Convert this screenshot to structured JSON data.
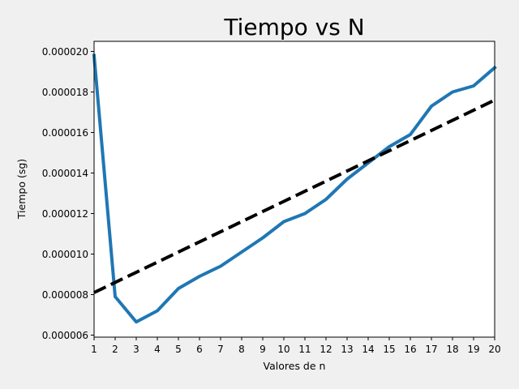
{
  "chart_data": {
    "type": "line",
    "title": "Tiempo vs N",
    "xlabel": "Valores de n",
    "ylabel": "Tiempo (sg)",
    "xlim": [
      1,
      20
    ],
    "ylim": [
      5.9e-06,
      2.05e-05
    ],
    "xticks": [
      "1",
      "2",
      "3",
      "4",
      "5",
      "6",
      "7",
      "8",
      "9",
      "10",
      "11",
      "12",
      "13",
      "14",
      "15",
      "16",
      "17",
      "18",
      "19",
      "20"
    ],
    "yticks": [
      "0.000006",
      "0.000008",
      "0.000010",
      "0.000012",
      "0.000014",
      "0.000016",
      "0.000018",
      "0.000020"
    ],
    "grid": false,
    "series": [
      {
        "style": "solid",
        "color": "#1f77b4",
        "x": [
          1,
          2,
          3,
          4,
          5,
          6,
          7,
          8,
          9,
          10,
          11,
          12,
          13,
          14,
          15,
          16,
          17,
          18,
          19,
          20
        ],
        "y": [
          1.98e-05,
          7.9e-06,
          6.65e-06,
          7.2e-06,
          8.3e-06,
          8.9e-06,
          9.4e-06,
          1.01e-05,
          1.08e-05,
          1.16e-05,
          1.2e-05,
          1.27e-05,
          1.37e-05,
          1.45e-05,
          1.53e-05,
          1.59e-05,
          1.73e-05,
          1.8e-05,
          1.83e-05,
          1.92e-05
        ]
      },
      {
        "style": "dashed",
        "color": "#000000",
        "x": [
          1,
          20
        ],
        "y": [
          8.1e-06,
          1.76e-05
        ]
      }
    ]
  }
}
